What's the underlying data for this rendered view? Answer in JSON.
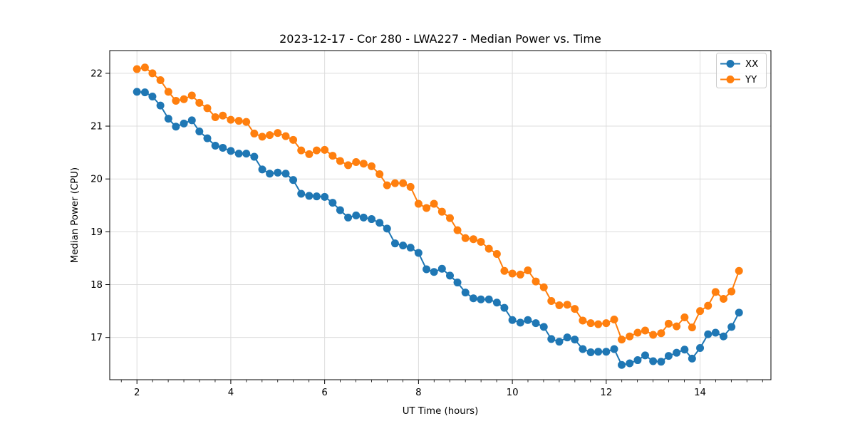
{
  "chart_data": {
    "type": "line",
    "title": "2023-12-17 - Cor 280 - LWA227 - Median Power vs. Time",
    "xlabel": "UT Time (hours)",
    "ylabel": "Median Power (CPU)",
    "legend_position": "upper right",
    "grid": true,
    "marker": "o",
    "xlim": [
      1.42,
      15.51
    ],
    "ylim": [
      16.2,
      22.43
    ],
    "x_ticks": [
      2,
      4,
      6,
      8,
      10,
      12,
      14
    ],
    "y_ticks": [
      17,
      18,
      19,
      20,
      21,
      22
    ],
    "x_minor_step": 0.3333,
    "colors": {
      "xx": "#1f77b4",
      "yy": "#ff7f0e",
      "grid": "#dcdcdc",
      "spine": "#000000",
      "legend_border": "#cccccc"
    },
    "x": [
      2.0,
      2.17,
      2.33,
      2.5,
      2.67,
      2.83,
      3.0,
      3.17,
      3.33,
      3.5,
      3.67,
      3.83,
      4.0,
      4.17,
      4.33,
      4.5,
      4.67,
      4.83,
      5.0,
      5.17,
      5.33,
      5.5,
      5.67,
      5.83,
      6.0,
      6.17,
      6.33,
      6.5,
      6.67,
      6.83,
      7.0,
      7.17,
      7.33,
      7.5,
      7.67,
      7.83,
      8.0,
      8.17,
      8.33,
      8.5,
      8.67,
      8.83,
      9.0,
      9.17,
      9.33,
      9.5,
      9.67,
      9.83,
      10.0,
      10.17,
      10.33,
      10.5,
      10.67,
      10.83,
      11.0,
      11.17,
      11.33,
      11.5,
      11.67,
      11.83,
      12.0,
      12.17,
      12.33,
      12.5,
      12.67,
      12.83,
      13.0,
      13.17,
      13.33,
      13.5,
      13.67,
      13.83,
      14.0,
      14.17,
      14.33,
      14.5,
      14.67,
      14.83
    ],
    "series": [
      {
        "name": "XX",
        "color": "#1f77b4",
        "values": [
          21.65,
          21.64,
          21.56,
          21.39,
          21.14,
          20.99,
          21.05,
          21.11,
          20.9,
          20.77,
          20.63,
          20.59,
          20.53,
          20.48,
          20.48,
          20.42,
          20.18,
          20.1,
          20.12,
          20.1,
          19.98,
          19.72,
          19.68,
          19.67,
          19.66,
          19.55,
          19.41,
          19.27,
          19.31,
          19.27,
          19.24,
          19.17,
          19.06,
          18.78,
          18.74,
          18.7,
          18.6,
          18.29,
          18.24,
          18.3,
          18.17,
          18.04,
          17.85,
          17.74,
          17.72,
          17.72,
          17.66,
          17.56,
          17.33,
          17.28,
          17.33,
          17.27,
          17.2,
          16.97,
          16.92,
          17.0,
          16.96,
          16.78,
          16.72,
          16.73,
          16.73,
          16.78,
          16.48,
          16.51,
          16.57,
          16.66,
          16.55,
          16.54,
          16.65,
          16.71,
          16.77,
          16.6,
          16.8,
          17.06,
          17.09,
          17.02,
          17.2,
          17.47
        ]
      },
      {
        "name": "YY",
        "color": "#ff7f0e",
        "values": [
          22.08,
          22.11,
          22.0,
          21.87,
          21.65,
          21.48,
          21.51,
          21.58,
          21.44,
          21.34,
          21.17,
          21.2,
          21.12,
          21.1,
          21.08,
          20.86,
          20.8,
          20.83,
          20.87,
          20.81,
          20.74,
          20.54,
          20.47,
          20.54,
          20.55,
          20.44,
          20.34,
          20.26,
          20.32,
          20.29,
          20.24,
          20.09,
          19.88,
          19.92,
          19.92,
          19.85,
          19.53,
          19.45,
          19.53,
          19.38,
          19.26,
          19.03,
          18.88,
          18.86,
          18.81,
          18.68,
          18.58,
          18.26,
          18.21,
          18.19,
          18.27,
          18.06,
          17.95,
          17.69,
          17.61,
          17.62,
          17.54,
          17.32,
          17.27,
          17.25,
          17.27,
          17.34,
          16.96,
          17.02,
          17.09,
          17.13,
          17.05,
          17.08,
          17.26,
          17.21,
          17.38,
          17.19,
          17.5,
          17.6,
          17.86,
          17.73,
          17.87,
          18.26
        ]
      }
    ]
  }
}
